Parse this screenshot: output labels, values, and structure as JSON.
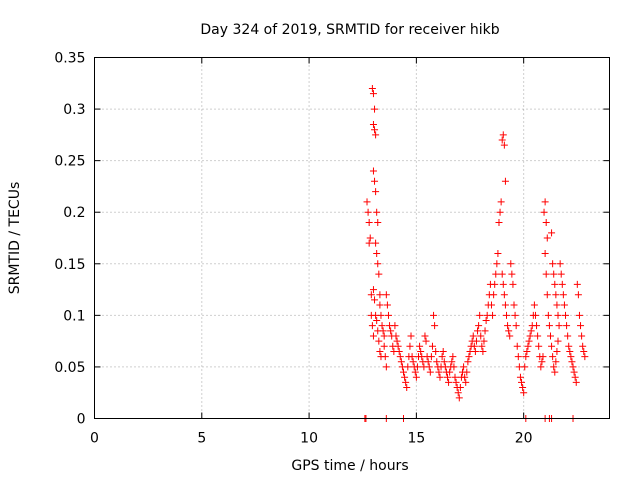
{
  "chart_data": {
    "type": "scatter",
    "title": "Day 324 of 2019, SRMTID for receiver hikb",
    "xlabel": "GPS time / hours",
    "ylabel": "SRMTID / TECUs",
    "xlim": [
      0,
      24
    ],
    "ylim": [
      0,
      0.35
    ],
    "grid": true,
    "marker": "plus",
    "color": "#ff0000",
    "x_ticks": [
      {
        "value": 0,
        "label": "0"
      },
      {
        "value": 5,
        "label": "5"
      },
      {
        "value": 10,
        "label": "10"
      },
      {
        "value": 15,
        "label": "15"
      },
      {
        "value": 20,
        "label": "20"
      }
    ],
    "y_ticks": [
      {
        "value": 0,
        "label": "0"
      },
      {
        "value": 0.05,
        "label": "0.05"
      },
      {
        "value": 0.1,
        "label": "0.1"
      },
      {
        "value": 0.15,
        "label": "0.15"
      },
      {
        "value": 0.2,
        "label": "0.2"
      },
      {
        "value": 0.25,
        "label": "0.25"
      },
      {
        "value": 0.3,
        "label": "0.3"
      },
      {
        "value": 0.35,
        "label": "0.35"
      }
    ],
    "series": [
      {
        "name": "SRMTID",
        "points": [
          [
            12.6,
            0.0
          ],
          [
            12.65,
            0.0
          ],
          [
            13.6,
            0.0
          ],
          [
            14.4,
            0.0
          ],
          [
            20.1,
            0.0
          ],
          [
            21.0,
            0.0
          ],
          [
            21.2,
            0.0
          ],
          [
            21.3,
            0.0
          ],
          [
            22.3,
            0.0
          ],
          [
            12.7,
            0.21
          ],
          [
            12.75,
            0.2
          ],
          [
            12.8,
            0.19
          ],
          [
            12.8,
            0.17
          ],
          [
            12.85,
            0.175
          ],
          [
            12.9,
            0.12
          ],
          [
            12.9,
            0.1
          ],
          [
            12.95,
            0.09
          ],
          [
            13.0,
            0.08
          ],
          [
            12.95,
            0.32
          ],
          [
            13.0,
            0.315
          ],
          [
            13.05,
            0.3
          ],
          [
            13.0,
            0.285
          ],
          [
            13.05,
            0.28
          ],
          [
            13.1,
            0.275
          ],
          [
            13.0,
            0.24
          ],
          [
            13.05,
            0.23
          ],
          [
            13.1,
            0.22
          ],
          [
            13.15,
            0.2
          ],
          [
            13.2,
            0.19
          ],
          [
            13.1,
            0.17
          ],
          [
            13.15,
            0.16
          ],
          [
            13.2,
            0.15
          ],
          [
            13.25,
            0.14
          ],
          [
            13.3,
            0.12
          ],
          [
            13.3,
            0.11
          ],
          [
            13.35,
            0.1
          ],
          [
            13.4,
            0.09
          ],
          [
            13.45,
            0.085
          ],
          [
            13.5,
            0.08
          ],
          [
            13.5,
            0.07
          ],
          [
            13.55,
            0.06
          ],
          [
            13.6,
            0.05
          ],
          [
            13.0,
            0.125
          ],
          [
            13.05,
            0.115
          ],
          [
            13.1,
            0.1
          ],
          [
            13.15,
            0.095
          ],
          [
            13.2,
            0.085
          ],
          [
            13.25,
            0.075
          ],
          [
            13.3,
            0.065
          ],
          [
            13.35,
            0.06
          ],
          [
            13.6,
            0.12
          ],
          [
            13.65,
            0.11
          ],
          [
            13.7,
            0.1
          ],
          [
            13.75,
            0.09
          ],
          [
            13.8,
            0.085
          ],
          [
            13.85,
            0.08
          ],
          [
            13.9,
            0.07
          ],
          [
            13.95,
            0.065
          ],
          [
            14.0,
            0.09
          ],
          [
            14.05,
            0.08
          ],
          [
            14.1,
            0.075
          ],
          [
            14.15,
            0.07
          ],
          [
            14.2,
            0.065
          ],
          [
            14.25,
            0.06
          ],
          [
            14.3,
            0.055
          ],
          [
            14.35,
            0.05
          ],
          [
            14.4,
            0.045
          ],
          [
            14.45,
            0.04
          ],
          [
            14.5,
            0.035
          ],
          [
            14.55,
            0.03
          ],
          [
            14.6,
            0.05
          ],
          [
            14.65,
            0.06
          ],
          [
            14.7,
            0.07
          ],
          [
            14.75,
            0.08
          ],
          [
            14.8,
            0.06
          ],
          [
            14.85,
            0.055
          ],
          [
            14.9,
            0.05
          ],
          [
            14.95,
            0.045
          ],
          [
            15.0,
            0.04
          ],
          [
            15.05,
            0.05
          ],
          [
            15.1,
            0.06
          ],
          [
            15.15,
            0.07
          ],
          [
            15.2,
            0.065
          ],
          [
            15.25,
            0.06
          ],
          [
            15.3,
            0.055
          ],
          [
            15.35,
            0.05
          ],
          [
            15.4,
            0.08
          ],
          [
            15.45,
            0.075
          ],
          [
            15.5,
            0.06
          ],
          [
            15.55,
            0.055
          ],
          [
            15.6,
            0.05
          ],
          [
            15.65,
            0.045
          ],
          [
            15.7,
            0.06
          ],
          [
            15.75,
            0.07
          ],
          [
            15.8,
            0.1
          ],
          [
            15.85,
            0.09
          ],
          [
            15.9,
            0.065
          ],
          [
            15.95,
            0.055
          ],
          [
            16.0,
            0.05
          ],
          [
            16.05,
            0.045
          ],
          [
            16.1,
            0.04
          ],
          [
            16.15,
            0.05
          ],
          [
            16.2,
            0.06
          ],
          [
            16.25,
            0.065
          ],
          [
            16.3,
            0.055
          ],
          [
            16.35,
            0.05
          ],
          [
            16.4,
            0.045
          ],
          [
            16.45,
            0.04
          ],
          [
            16.5,
            0.035
          ],
          [
            16.55,
            0.045
          ],
          [
            16.6,
            0.05
          ],
          [
            16.65,
            0.055
          ],
          [
            16.7,
            0.06
          ],
          [
            16.75,
            0.05
          ],
          [
            16.8,
            0.04
          ],
          [
            16.85,
            0.035
          ],
          [
            16.9,
            0.03
          ],
          [
            16.95,
            0.025
          ],
          [
            17.0,
            0.02
          ],
          [
            17.05,
            0.03
          ],
          [
            17.1,
            0.04
          ],
          [
            17.15,
            0.045
          ],
          [
            17.2,
            0.05
          ],
          [
            17.25,
            0.04
          ],
          [
            17.3,
            0.035
          ],
          [
            17.35,
            0.045
          ],
          [
            17.4,
            0.055
          ],
          [
            17.45,
            0.06
          ],
          [
            17.5,
            0.065
          ],
          [
            17.55,
            0.07
          ],
          [
            17.6,
            0.075
          ],
          [
            17.65,
            0.08
          ],
          [
            17.7,
            0.07
          ],
          [
            17.75,
            0.065
          ],
          [
            17.8,
            0.075
          ],
          [
            17.85,
            0.085
          ],
          [
            17.9,
            0.09
          ],
          [
            17.95,
            0.1
          ],
          [
            18.0,
            0.08
          ],
          [
            18.05,
            0.07
          ],
          [
            18.1,
            0.065
          ],
          [
            18.15,
            0.075
          ],
          [
            18.2,
            0.085
          ],
          [
            18.25,
            0.095
          ],
          [
            18.3,
            0.1
          ],
          [
            18.35,
            0.11
          ],
          [
            18.4,
            0.12
          ],
          [
            18.45,
            0.13
          ],
          [
            18.5,
            0.11
          ],
          [
            18.55,
            0.1
          ],
          [
            18.6,
            0.12
          ],
          [
            18.65,
            0.13
          ],
          [
            18.7,
            0.14
          ],
          [
            18.75,
            0.15
          ],
          [
            18.8,
            0.16
          ],
          [
            18.85,
            0.19
          ],
          [
            18.9,
            0.2
          ],
          [
            18.95,
            0.21
          ],
          [
            19.0,
            0.27
          ],
          [
            19.05,
            0.275
          ],
          [
            19.1,
            0.265
          ],
          [
            19.15,
            0.23
          ],
          [
            19.0,
            0.14
          ],
          [
            19.05,
            0.13
          ],
          [
            19.1,
            0.12
          ],
          [
            19.15,
            0.11
          ],
          [
            19.2,
            0.1
          ],
          [
            19.25,
            0.09
          ],
          [
            19.3,
            0.085
          ],
          [
            19.35,
            0.08
          ],
          [
            19.4,
            0.15
          ],
          [
            19.45,
            0.14
          ],
          [
            19.5,
            0.13
          ],
          [
            19.55,
            0.11
          ],
          [
            19.6,
            0.1
          ],
          [
            19.65,
            0.09
          ],
          [
            19.7,
            0.07
          ],
          [
            19.75,
            0.06
          ],
          [
            19.8,
            0.05
          ],
          [
            19.85,
            0.04
          ],
          [
            19.9,
            0.035
          ],
          [
            19.95,
            0.03
          ],
          [
            20.0,
            0.025
          ],
          [
            20.05,
            0.05
          ],
          [
            20.1,
            0.06
          ],
          [
            20.15,
            0.065
          ],
          [
            20.2,
            0.07
          ],
          [
            20.25,
            0.075
          ],
          [
            20.3,
            0.08
          ],
          [
            20.35,
            0.085
          ],
          [
            20.4,
            0.09
          ],
          [
            20.45,
            0.1
          ],
          [
            20.5,
            0.11
          ],
          [
            20.55,
            0.1
          ],
          [
            20.6,
            0.09
          ],
          [
            20.65,
            0.08
          ],
          [
            20.7,
            0.07
          ],
          [
            20.75,
            0.06
          ],
          [
            20.8,
            0.05
          ],
          [
            20.85,
            0.055
          ],
          [
            20.9,
            0.06
          ],
          [
            20.95,
            0.2
          ],
          [
            21.0,
            0.21
          ],
          [
            21.05,
            0.19
          ],
          [
            21.1,
            0.175
          ],
          [
            21.0,
            0.16
          ],
          [
            21.05,
            0.14
          ],
          [
            21.1,
            0.12
          ],
          [
            21.15,
            0.1
          ],
          [
            21.2,
            0.09
          ],
          [
            21.25,
            0.08
          ],
          [
            21.3,
            0.07
          ],
          [
            21.35,
            0.06
          ],
          [
            21.4,
            0.05
          ],
          [
            21.45,
            0.045
          ],
          [
            21.5,
            0.055
          ],
          [
            21.55,
            0.065
          ],
          [
            21.6,
            0.075
          ],
          [
            21.3,
            0.18
          ],
          [
            21.35,
            0.15
          ],
          [
            21.4,
            0.14
          ],
          [
            21.45,
            0.13
          ],
          [
            21.5,
            0.12
          ],
          [
            21.55,
            0.11
          ],
          [
            21.6,
            0.1
          ],
          [
            21.65,
            0.09
          ],
          [
            21.7,
            0.15
          ],
          [
            21.75,
            0.14
          ],
          [
            21.8,
            0.13
          ],
          [
            21.85,
            0.12
          ],
          [
            21.9,
            0.11
          ],
          [
            21.95,
            0.1
          ],
          [
            22.0,
            0.09
          ],
          [
            22.05,
            0.08
          ],
          [
            22.1,
            0.07
          ],
          [
            22.15,
            0.065
          ],
          [
            22.2,
            0.06
          ],
          [
            22.25,
            0.055
          ],
          [
            22.3,
            0.05
          ],
          [
            22.35,
            0.045
          ],
          [
            22.4,
            0.04
          ],
          [
            22.45,
            0.035
          ],
          [
            22.5,
            0.13
          ],
          [
            22.55,
            0.12
          ],
          [
            22.6,
            0.1
          ],
          [
            22.65,
            0.09
          ],
          [
            22.7,
            0.08
          ],
          [
            22.75,
            0.07
          ],
          [
            22.8,
            0.065
          ],
          [
            22.85,
            0.06
          ]
        ]
      }
    ]
  }
}
